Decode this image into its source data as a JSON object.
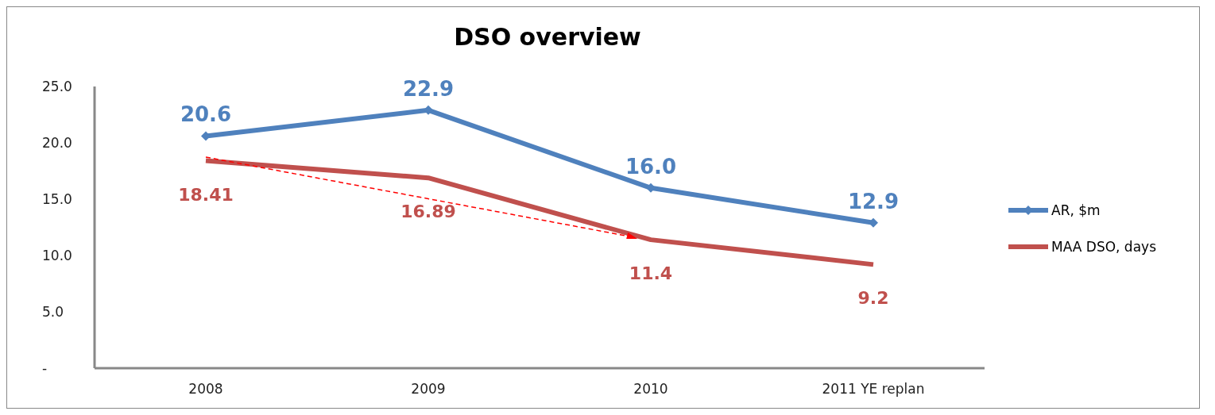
{
  "chart_data": {
    "type": "line",
    "title": "DSO overview",
    "categories": [
      "2008",
      "2009",
      "2010",
      "2011 YE replan"
    ],
    "series": [
      {
        "name": "AR, $m",
        "color": "#4f81bd",
        "values": [
          20.6,
          22.9,
          16.0,
          12.9
        ],
        "value_labels": [
          "20.6",
          "22.9",
          "16.0",
          "12.9"
        ],
        "marker": "diamond"
      },
      {
        "name": "MAA DSO, days",
        "color": "#c0504d",
        "values": [
          18.41,
          16.89,
          11.4,
          9.2
        ],
        "value_labels": [
          "18.41",
          "16.89",
          "11.4",
          "9.2"
        ],
        "marker": "none"
      }
    ],
    "ylim": [
      0,
      25
    ],
    "yticks": [
      {
        "value": 0,
        "label": "-"
      },
      {
        "value": 5,
        "label": "5.0"
      },
      {
        "value": 10,
        "label": "10.0"
      },
      {
        "value": 15,
        "label": "15.0"
      },
      {
        "value": 20,
        "label": "20.0"
      },
      {
        "value": 25,
        "label": "25.0"
      }
    ],
    "grid": false,
    "legend": "right"
  }
}
